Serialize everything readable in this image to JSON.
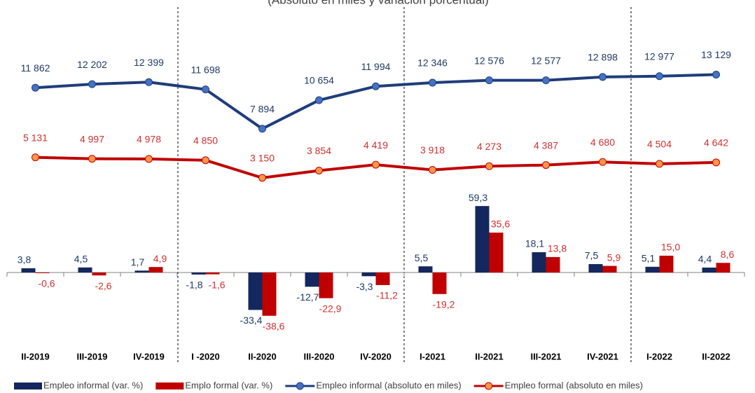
{
  "chart_data": {
    "type": "bar_line",
    "subtitle": "(Absoluto en miles y variación porcentual)",
    "categories": [
      "II-2019",
      "III-2019",
      "IV-2019",
      "I -2020",
      "II-2020",
      "III-2020",
      "IV-2020",
      "I-2021",
      "II-2021",
      "III-2021",
      "IV-2021",
      "I-2022",
      "II-2022"
    ],
    "ylim": [
      -60,
      240
    ],
    "y2lim": [
      -12500,
      20000
    ],
    "legend": "bottom",
    "series": [
      {
        "name": "Empleo informal (var. %)",
        "type": "bar",
        "color": "#14275e",
        "label_color": "#1f3864",
        "values": [
          3.8,
          4.5,
          1.7,
          -1.8,
          -33.4,
          -12.7,
          -3.3,
          5.5,
          59.3,
          18.1,
          7.5,
          5.1,
          4.4
        ],
        "value_labels": [
          "3,8",
          "4,5",
          "1,7",
          "-1,8",
          "-33,4",
          "-12,7",
          "-3,3",
          "5,5",
          "59,3",
          "18,1",
          "7,5",
          "5,1",
          "4,4"
        ]
      },
      {
        "name": "Emplo formal (var. %)",
        "type": "bar",
        "color": "#c00000",
        "label_color": "#d03030",
        "values": [
          -0.6,
          -2.6,
          4.9,
          -1.6,
          -38.6,
          -22.9,
          -11.2,
          -19.2,
          35.6,
          13.8,
          5.9,
          15.0,
          8.6
        ],
        "value_labels": [
          "-0,6",
          "-2,6",
          "4,9",
          "-1,6",
          "-38,6",
          "-22,9",
          "-11,2",
          "-19,2",
          "35,6",
          "13,8",
          "5,9",
          "15,0",
          "8,6"
        ]
      },
      {
        "name": "Empleo informal (absoluto en miles)",
        "type": "line",
        "axis": "y2",
        "color": "#1f3d7a",
        "marker_color": "#4472c4",
        "label_color": "#1f3864",
        "values": [
          11862,
          12202,
          12399,
          11698,
          7894,
          10654,
          11994,
          12346,
          12576,
          12577,
          12898,
          12977,
          13129
        ],
        "value_labels": [
          "11 862",
          "12 202",
          "12 399",
          "11 698",
          "7 894",
          "10 654",
          "11 994",
          "12 346",
          "12 576",
          "12 577",
          "12 898",
          "12 977",
          "13 129"
        ]
      },
      {
        "name": "Empleo formal (absoluto en miles)",
        "type": "line",
        "axis": "y2",
        "color": "#c00000",
        "marker_color": "#f79646",
        "label_color": "#d03030",
        "values": [
          5131,
          4997,
          4978,
          4850,
          3150,
          3854,
          4419,
          3918,
          4273,
          4387,
          4680,
          4504,
          4642
        ],
        "value_labels": [
          "5 131",
          "4 997",
          "4 978",
          "4 850",
          "3 150",
          "3 854",
          "4 419",
          "3 918",
          "4 273",
          "4 387",
          "4 680",
          "4 504",
          "4 642"
        ]
      }
    ]
  }
}
